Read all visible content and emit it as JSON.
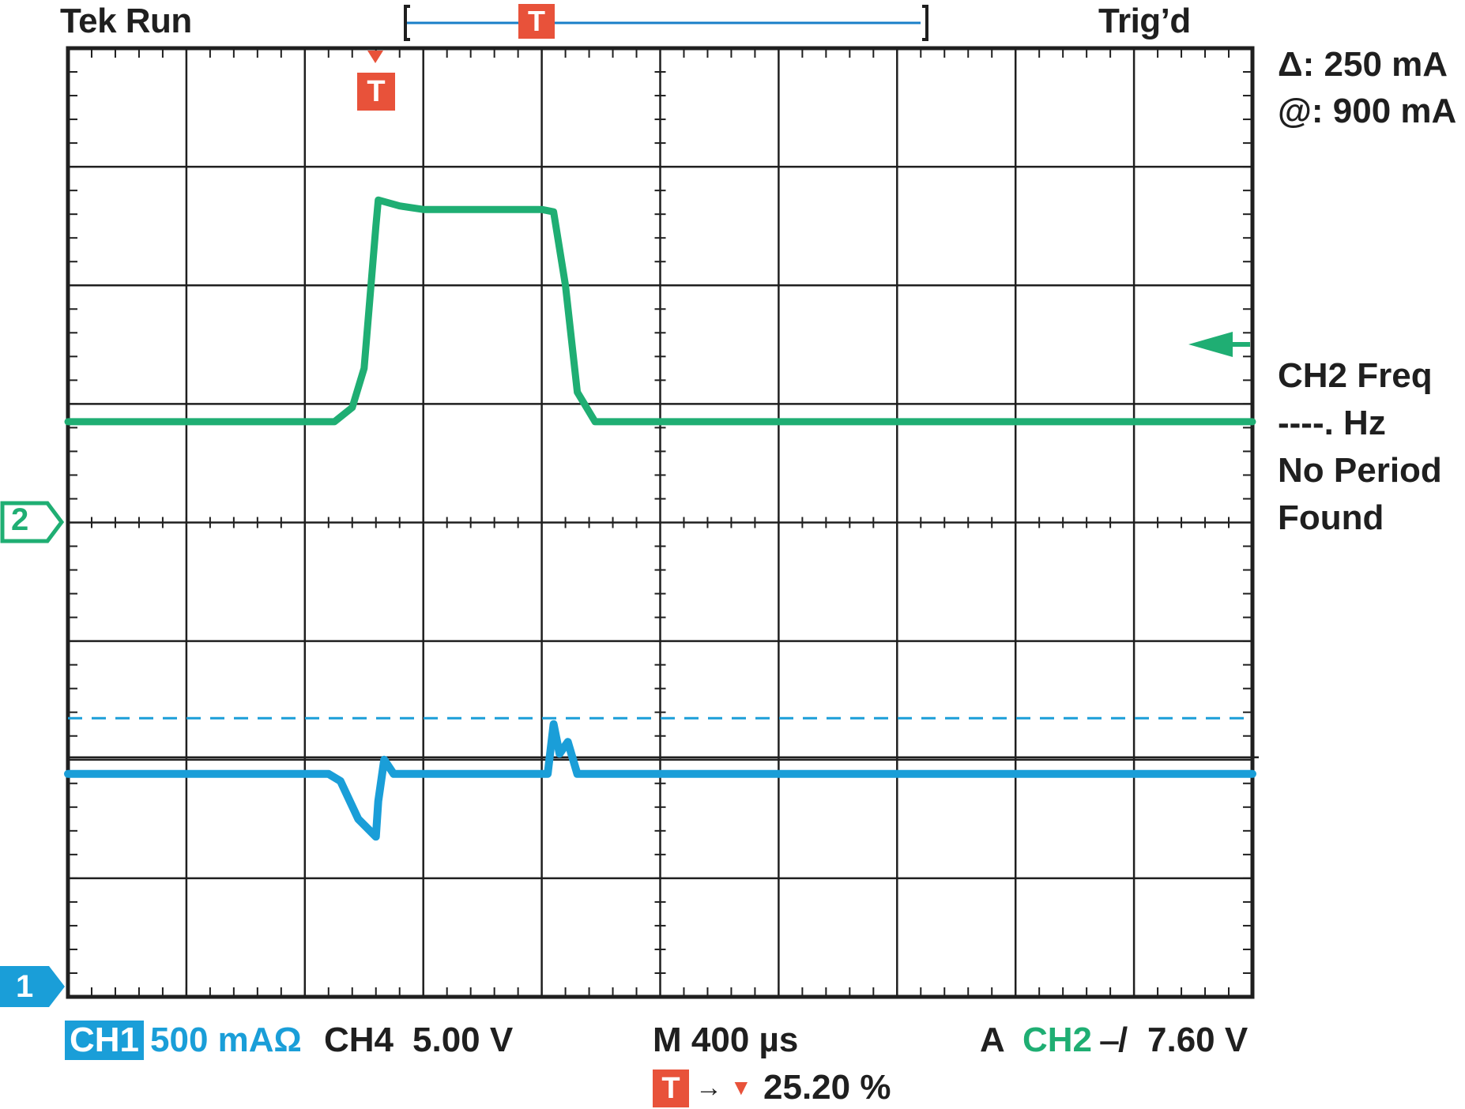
{
  "status": {
    "left": "Tek Run",
    "right": "Trig’d"
  },
  "trigger": {
    "marker_label": "T"
  },
  "cursor": {
    "delta": "Δ: 250 mA",
    "at": "@: 900 mA"
  },
  "measurement": {
    "lines": [
      "CH2 Freq",
      "----. Hz",
      "No Period",
      "Found"
    ]
  },
  "channel_markers": {
    "ch2": "2",
    "ch1": "1"
  },
  "footer": {
    "ch1_badge": "CH1",
    "ch1_scale": "500 mAΩ",
    "ch4_label": "CH4",
    "ch4_scale": "5.00 V",
    "timebase": "M 400 µs",
    "trig_source_prefix": "A",
    "trig_source": "CH2",
    "trig_slope": "⎯/",
    "trig_level": "7.60 V",
    "trig_pos_label": "T",
    "trig_pos_arrow": "→",
    "trig_pos_marker": "▼",
    "trig_pos_value": "25.20 %"
  },
  "colors": {
    "ch2_trace": "#1fae73",
    "ch1_trace": "#1a9ed8",
    "trigger": "#e8523a",
    "grid": "#1f1f1f"
  },
  "chart_data": {
    "type": "line",
    "grid_divisions": {
      "x": 10,
      "y": 8
    },
    "grid": true,
    "x_unit": "divisions",
    "series": [
      {
        "name": "CH2",
        "color": "#1fae73",
        "points": [
          [
            0,
            4.85
          ],
          [
            2.25,
            4.85
          ],
          [
            2.4,
            4.97
          ],
          [
            2.5,
            5.3
          ],
          [
            2.6,
            6.5
          ],
          [
            2.62,
            6.72
          ],
          [
            2.8,
            6.67
          ],
          [
            3.0,
            6.64
          ],
          [
            4.0,
            6.64
          ],
          [
            4.1,
            6.62
          ],
          [
            4.2,
            6.0
          ],
          [
            4.3,
            5.1
          ],
          [
            4.45,
            4.85
          ],
          [
            10,
            4.85
          ]
        ]
      },
      {
        "name": "CH1",
        "color": "#1a9ed8",
        "points": [
          [
            0,
            1.88
          ],
          [
            2.2,
            1.88
          ],
          [
            2.3,
            1.82
          ],
          [
            2.45,
            1.5
          ],
          [
            2.6,
            1.35
          ],
          [
            2.62,
            1.65
          ],
          [
            2.67,
            2.0
          ],
          [
            2.75,
            1.88
          ],
          [
            4.05,
            1.88
          ],
          [
            4.1,
            2.3
          ],
          [
            4.15,
            2.05
          ],
          [
            4.22,
            2.15
          ],
          [
            4.3,
            1.88
          ],
          [
            10,
            1.88
          ]
        ]
      }
    ],
    "reference_lines": [
      {
        "channel": "CH1",
        "style": "dashed",
        "y_div": 2.35
      },
      {
        "channel": "CH1",
        "style": "solid",
        "y_div": 2.02
      }
    ],
    "trigger_position_div": 2.6,
    "trigger_level_div": 5.7,
    "ch2_ground_div": 4.0,
    "ch1_ground_div": 0.0
  }
}
